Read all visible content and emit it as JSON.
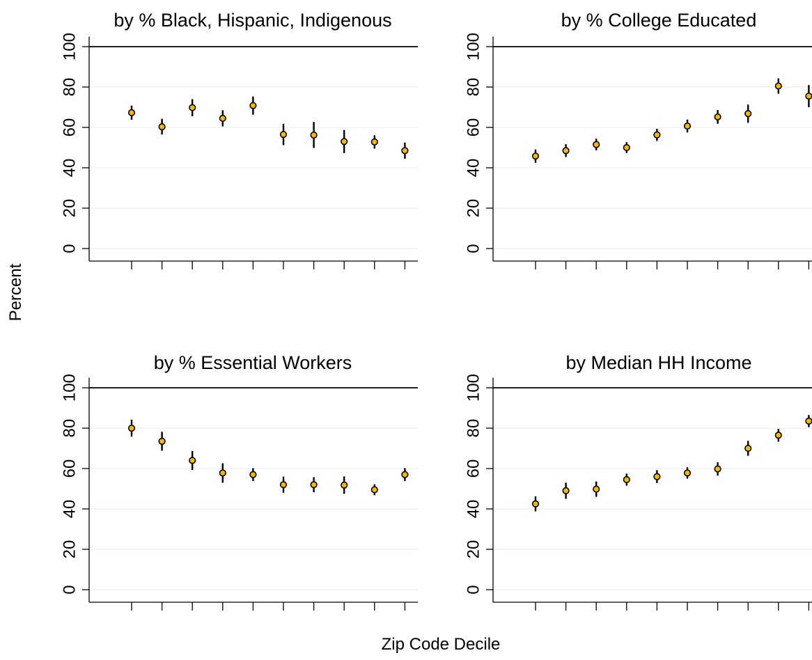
{
  "figure": {
    "ylabel": "Percent",
    "xlabel": "Zip Code Decile"
  },
  "colors": {
    "marker_fill": "#F5B800",
    "marker_stroke": "#000000",
    "errorbar": "#000000",
    "gridline": "#E6EFF2",
    "reference_line": "#000000"
  },
  "chart_data": [
    {
      "type": "scatter",
      "title": "by % Black, Hispanic, Indigenous",
      "x": [
        1,
        2,
        3,
        4,
        5,
        6,
        7,
        8,
        9,
        10
      ],
      "values": [
        67.3,
        60.3,
        69.8,
        64.5,
        70.8,
        56.5,
        56.2,
        53.0,
        52.8,
        48.5
      ],
      "err_low": [
        63.8,
        56.5,
        65.5,
        60.5,
        66.3,
        51.2,
        49.8,
        47.3,
        49.5,
        44.5
      ],
      "err_high": [
        70.8,
        64.3,
        74.0,
        68.5,
        75.3,
        61.8,
        62.7,
        58.7,
        56.1,
        52.5
      ],
      "ylim": [
        0,
        105
      ],
      "yticks": [
        "0",
        "20",
        "40",
        "60",
        "80",
        "100"
      ],
      "reference_line": 100,
      "grid": true
    },
    {
      "type": "scatter",
      "title": "by % College Educated",
      "x": [
        1,
        2,
        3,
        4,
        5,
        6,
        7,
        8,
        9,
        10
      ],
      "values": [
        45.8,
        48.5,
        51.5,
        50.0,
        56.3,
        60.7,
        65.2,
        66.8,
        80.5,
        75.5
      ],
      "err_low": [
        42.5,
        45.3,
        48.6,
        47.3,
        53.3,
        57.5,
        61.8,
        62.3,
        76.7,
        70.0
      ],
      "err_high": [
        49.1,
        51.7,
        54.4,
        52.7,
        59.3,
        63.9,
        68.6,
        71.3,
        84.3,
        81.0
      ],
      "ylim": [
        0,
        105
      ],
      "yticks": [
        "0",
        "20",
        "40",
        "60",
        "80",
        "100"
      ],
      "reference_line": 100,
      "grid": true
    },
    {
      "type": "scatter",
      "title": "by % Essential Workers",
      "x": [
        1,
        2,
        3,
        4,
        5,
        6,
        7,
        8,
        9,
        10
      ],
      "values": [
        80.0,
        73.5,
        64.0,
        57.8,
        57.0,
        52.0,
        52.0,
        51.8,
        49.5,
        57.0
      ],
      "err_low": [
        75.8,
        68.8,
        59.3,
        53.0,
        53.8,
        48.0,
        48.3,
        47.5,
        46.8,
        53.8
      ],
      "err_high": [
        84.2,
        78.2,
        68.7,
        62.6,
        60.2,
        56.0,
        55.7,
        56.1,
        52.2,
        60.2
      ],
      "ylim": [
        0,
        105
      ],
      "yticks": [
        "0",
        "20",
        "40",
        "60",
        "80",
        "100"
      ],
      "reference_line": 100,
      "grid": true
    },
    {
      "type": "scatter",
      "title": "by Median HH Income",
      "x": [
        1,
        2,
        3,
        4,
        5,
        6,
        7,
        8,
        9,
        10
      ],
      "values": [
        42.5,
        49.0,
        49.8,
        54.5,
        56.0,
        57.8,
        59.8,
        70.0,
        76.5,
        83.5
      ],
      "err_low": [
        38.8,
        45.0,
        46.0,
        51.5,
        52.8,
        55.0,
        56.5,
        66.3,
        73.3,
        80.5
      ],
      "err_high": [
        46.2,
        53.0,
        53.6,
        57.5,
        59.2,
        60.6,
        63.1,
        73.7,
        79.7,
        86.5
      ],
      "ylim": [
        0,
        105
      ],
      "yticks": [
        "0",
        "20",
        "40",
        "60",
        "80",
        "100"
      ],
      "reference_line": 100,
      "grid": true
    }
  ]
}
